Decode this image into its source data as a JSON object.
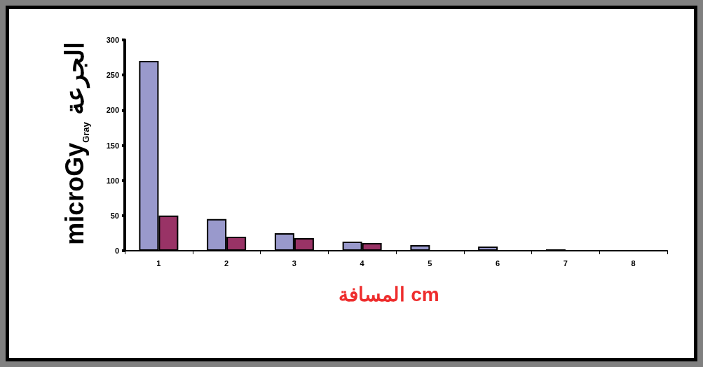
{
  "chart_data": {
    "type": "bar",
    "xlabel": "المسافة cm",
    "ylabel": "microGy$_{Gray}$ الجرعة",
    "categories": [
      "1",
      "2",
      "3",
      "4",
      "5",
      "6",
      "7",
      "8"
    ],
    "series": [
      {
        "color": "#9999cc",
        "values": [
          270,
          45,
          25,
          13,
          8,
          6,
          2,
          null
        ]
      },
      {
        "color": "#993366",
        "values": [
          50,
          20,
          18,
          11,
          null,
          null,
          null,
          null
        ]
      }
    ],
    "ylim": [
      0,
      300
    ],
    "yticks": [
      0,
      50,
      100,
      150,
      200,
      250,
      300
    ]
  }
}
